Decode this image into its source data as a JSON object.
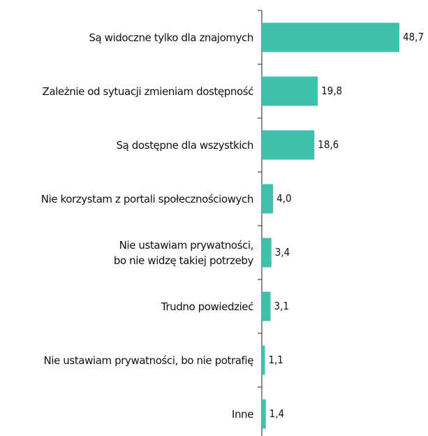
{
  "chart_data": {
    "type": "bar",
    "orientation": "horizontal",
    "categories": [
      "Są widoczne tylko dla znajomych",
      "Zależnie od sytuacji zmieniam dostępność",
      "Są dostępne dla wszystkich",
      "Nie korzystam z portali społecznościowych",
      "Nie ustawiam prywatności,\nbo nie widzę takiej potrzeby",
      "Trudno powiedzieć",
      "Nie ustawiam prywatności, bo nie potrafię",
      "Inne"
    ],
    "values": [
      48.7,
      19.8,
      18.6,
      4.0,
      3.4,
      3.1,
      1.1,
      1.4
    ],
    "value_labels": [
      "48,7",
      "19,8",
      "18,6",
      "4,0",
      "3,4",
      "3,1",
      "1,1",
      "1,4"
    ],
    "color": "#40c1ae"
  }
}
